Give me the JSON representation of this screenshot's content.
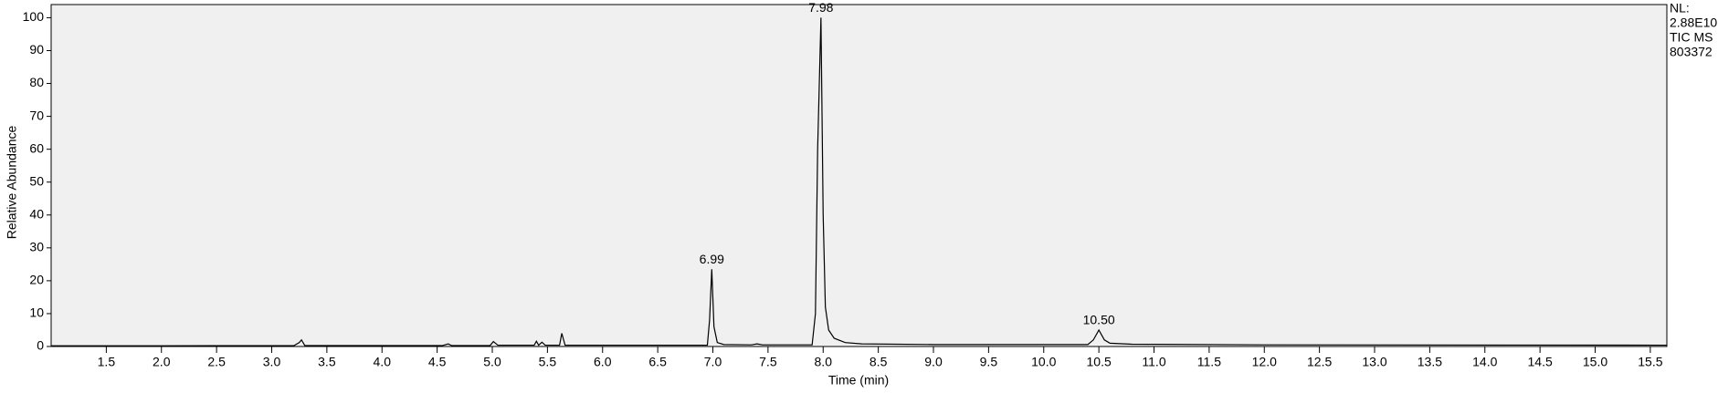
{
  "chart_data": {
    "type": "line",
    "x_label": "Time (min)",
    "y_label": "Relative Abundance",
    "info": [
      "NL:",
      "2.88E10",
      "TIC  MS",
      "803372"
    ],
    "xlim": [
      1.0,
      15.65
    ],
    "ylim": [
      0,
      104
    ],
    "xticks": [
      1.5,
      {
        "value": 2,
        "label": "2.0"
      },
      2.5,
      {
        "value": 3,
        "label": "3.0"
      },
      3.5,
      {
        "value": 4,
        "label": "4.0"
      },
      4.5,
      {
        "value": 5,
        "label": "5.0"
      },
      5.5,
      {
        "value": 6,
        "label": "6.0"
      },
      6.5,
      {
        "value": 7,
        "label": "7.0"
      },
      7.5,
      {
        "value": 8,
        "label": "8.0"
      },
      8.5,
      {
        "value": 9,
        "label": "9.0"
      },
      9.5,
      {
        "value": 10,
        "label": "10.0"
      },
      10.5,
      {
        "value": 11,
        "label": "11.0"
      },
      11.5,
      {
        "value": 12,
        "label": "12.0"
      },
      12.5,
      {
        "value": 13,
        "label": "13.0"
      },
      13.5,
      {
        "value": 14,
        "label": "14.0"
      },
      14.5,
      {
        "value": 15,
        "label": "15.0"
      },
      15.5
    ],
    "yticks": [
      0,
      10,
      20,
      30,
      40,
      50,
      60,
      70,
      80,
      90,
      100
    ],
    "background": "#f0f0f0",
    "series": [
      {
        "color": "#000000",
        "x": [
          1.0,
          2.0,
          2.5,
          3.2,
          3.25,
          3.27,
          3.3,
          4.55,
          4.6,
          4.63,
          4.98,
          5.01,
          5.05,
          5.38,
          5.4,
          5.42,
          5.45,
          5.48,
          5.61,
          5.63,
          5.66,
          6.95,
          6.97,
          6.99,
          7.01,
          7.04,
          7.1,
          7.35,
          7.4,
          7.45,
          7.9,
          7.93,
          7.95,
          7.98,
          8.0,
          8.02,
          8.05,
          8.1,
          8.2,
          8.35,
          9.0,
          10.4,
          10.45,
          10.5,
          10.55,
          10.6,
          10.8,
          12.0,
          15.65
        ],
        "values": [
          0.2,
          0.2,
          0.25,
          0.25,
          1.2,
          2.0,
          0.3,
          0.3,
          0.8,
          0.3,
          0.3,
          1.5,
          0.4,
          0.4,
          1.6,
          0.4,
          1.3,
          0.4,
          0.4,
          4.0,
          0.4,
          0.4,
          8,
          23.5,
          6,
          1.2,
          0.6,
          0.5,
          0.8,
          0.5,
          0.5,
          10,
          60,
          100,
          40,
          12,
          5,
          2.5,
          1.2,
          0.8,
          0.6,
          0.6,
          2.0,
          5.0,
          2.0,
          1.0,
          0.7,
          0.5,
          0.4
        ]
      }
    ],
    "annotations": [
      {
        "text": "6.99",
        "x": 6.99,
        "y": 23.5
      },
      {
        "text": "7.98",
        "x": 7.98,
        "y": 100
      },
      {
        "text": "10.50",
        "x": 10.5,
        "y": 5.0
      }
    ]
  }
}
